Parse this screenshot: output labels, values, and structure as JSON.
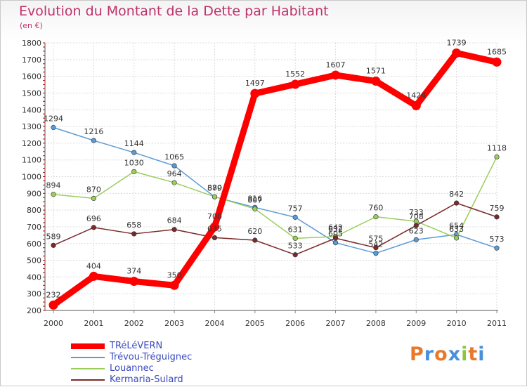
{
  "title": "Evolution du Montant de la Dette par Habitant",
  "subtitle": "(en €)",
  "logo": {
    "letters": [
      "P",
      "r",
      "o",
      "x",
      "i",
      "t",
      "i"
    ],
    "colors": [
      "#e8792b",
      "#4a90d9",
      "#e8792b",
      "#4a90d9",
      "#8cc63f",
      "#e8792b",
      "#4a90d9"
    ]
  },
  "chart_data": {
    "type": "line",
    "x": [
      "2000",
      "2001",
      "2002",
      "2003",
      "2004",
      "2005",
      "2006",
      "2007",
      "2008",
      "2009",
      "2010",
      "2011"
    ],
    "ylim": [
      200,
      1800
    ],
    "yticks": [
      200,
      300,
      400,
      500,
      600,
      700,
      800,
      900,
      1000,
      1100,
      1200,
      1300,
      1400,
      1500,
      1600,
      1700,
      1800
    ],
    "grid": true,
    "legend_position": "bottom-left",
    "series": [
      {
        "name": "TRéLéVERN",
        "color": "#ff0000",
        "thick": true,
        "values": [
          232,
          404,
          374,
          350,
          700,
          1497,
          1552,
          1607,
          1571,
          1424,
          1739,
          1685
        ],
        "labels": [
          "232",
          "404",
          "374",
          "350",
          "700",
          "1497",
          "1552",
          "1607",
          "1571",
          "1424",
          "1739",
          "1685"
        ]
      },
      {
        "name": "Trévou-Tréguignec",
        "color": "#5b9bd5",
        "thick": false,
        "values": [
          1294,
          1216,
          1144,
          1065,
          879,
          816,
          757,
          605,
          542,
          623,
          654,
          573
        ],
        "labels": [
          "1294",
          "1216",
          "1144",
          "1065",
          "879",
          "816",
          "757",
          "605",
          "542",
          "623",
          "654",
          "573"
        ]
      },
      {
        "name": "Louannec",
        "color": "#9acd5a",
        "thick": false,
        "values": [
          894,
          870,
          1030,
          964,
          880,
          807,
          631,
          642,
          760,
          733,
          633,
          1118
        ],
        "labels": [
          "894",
          "870",
          "1030",
          "964",
          "880",
          "807",
          "631",
          "642",
          "760",
          "733",
          "633",
          "1118"
        ]
      },
      {
        "name": "Kermaria-Sulard",
        "color": "#7a2a2a",
        "thick": false,
        "values": [
          589,
          696,
          658,
          684,
          635,
          620,
          533,
          632,
          575,
          708,
          842,
          759
        ],
        "labels": [
          "589",
          "696",
          "658",
          "684",
          "635",
          "620",
          "533",
          "632",
          "575",
          "708",
          "842",
          "759"
        ]
      }
    ]
  }
}
